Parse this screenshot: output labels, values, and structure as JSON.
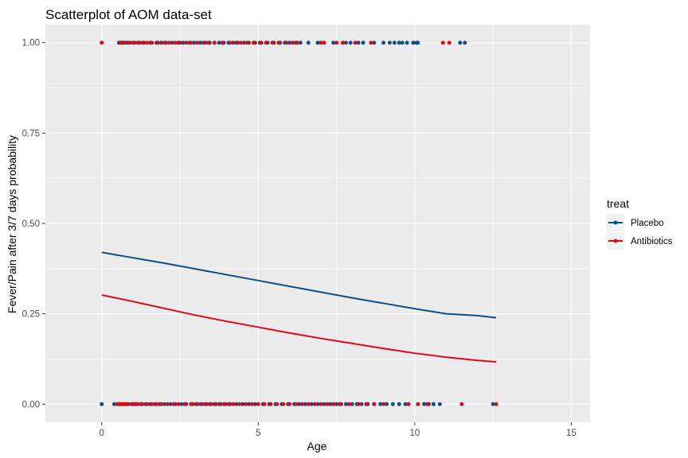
{
  "chart_data": {
    "type": "scatter",
    "title": "Scatterplot of AOM data-set",
    "xlabel": "Age",
    "ylabel": "Fever/Pain after 3/7 days probability",
    "xlim": [
      -1.8,
      15.6
    ],
    "ylim": [
      -0.05,
      1.05
    ],
    "x_ticks": [
      0,
      5,
      10,
      15
    ],
    "x_tick_labels": [
      "0",
      "5",
      "10",
      "15"
    ],
    "y_ticks": [
      0,
      0.25,
      0.5,
      0.75,
      1
    ],
    "y_tick_labels": [
      "0.00",
      "0.25",
      "0.50",
      "0.75",
      "1.00"
    ],
    "grid": true,
    "legend": {
      "title": "treat",
      "position": "right",
      "entries": [
        "Placebo",
        "Antibiotics"
      ]
    },
    "series": [
      {
        "name": "Placebo",
        "color": "#0B4F8C",
        "points_y1": [
          0.55,
          0.6,
          0.65,
          0.72,
          0.8,
          0.9,
          1.05,
          1.2,
          1.35,
          1.55,
          1.75,
          1.9,
          2.05,
          2.25,
          2.45,
          2.6,
          2.8,
          2.95,
          3.15,
          3.3,
          3.45,
          3.6,
          3.75,
          3.9,
          4.05,
          4.2,
          4.35,
          4.55,
          4.7,
          4.9,
          5.1,
          5.3,
          5.5,
          5.7,
          5.85,
          6.0,
          6.2,
          6.35,
          6.6,
          6.9,
          7.4,
          7.8,
          7.95,
          8.2,
          8.35,
          8.7,
          9.0,
          9.2,
          9.35,
          9.5,
          9.6,
          9.75,
          9.95,
          10.05,
          10.1,
          11.45,
          11.6
        ],
        "points_y0": [
          0.0,
          0.4,
          0.55,
          0.65,
          0.75,
          0.85,
          1.0,
          1.1,
          1.25,
          1.4,
          1.55,
          1.7,
          1.85,
          2.0,
          2.2,
          2.35,
          2.55,
          2.7,
          2.9,
          3.05,
          3.2,
          3.35,
          3.5,
          3.65,
          3.8,
          3.95,
          4.1,
          4.3,
          4.5,
          4.7,
          4.9,
          5.15,
          5.35,
          5.55,
          5.75,
          5.95,
          6.15,
          6.3,
          6.5,
          6.7,
          6.9,
          7.1,
          7.3,
          7.5,
          7.65,
          7.8,
          8.0,
          8.15,
          8.3,
          8.5,
          8.7,
          8.9,
          9.1,
          9.3,
          9.5,
          9.7,
          10.3,
          10.45,
          10.6,
          10.8,
          12.5
        ],
        "fit": [
          [
            0,
            0.42
          ],
          [
            1,
            0.405
          ],
          [
            2,
            0.39
          ],
          [
            3,
            0.374
          ],
          [
            4,
            0.358
          ],
          [
            5,
            0.342
          ],
          [
            6,
            0.326
          ],
          [
            7,
            0.31
          ],
          [
            8,
            0.294
          ],
          [
            9,
            0.279
          ],
          [
            10,
            0.264
          ],
          [
            11,
            0.25
          ],
          [
            12,
            0.245
          ],
          [
            12.6,
            0.239
          ]
        ]
      },
      {
        "name": "Antibiotics",
        "color": "#E30613",
        "points_y1": [
          0.0,
          0.6,
          0.7,
          0.85,
          1.0,
          1.15,
          1.3,
          1.45,
          1.6,
          1.8,
          2.0,
          2.15,
          2.35,
          2.5,
          2.7,
          2.85,
          3.05,
          3.25,
          3.4,
          3.6,
          3.85,
          4.1,
          4.3,
          4.45,
          4.65,
          4.85,
          5.05,
          5.25,
          5.45,
          5.65,
          5.9,
          6.1,
          6.25,
          7.0,
          7.1,
          7.5,
          7.7,
          8.1,
          8.6,
          10.9,
          11.1
        ],
        "points_y0": [
          0.5,
          0.6,
          0.7,
          0.8,
          0.95,
          1.05,
          1.15,
          1.3,
          1.45,
          1.6,
          1.75,
          1.9,
          2.1,
          2.3,
          2.45,
          2.65,
          2.85,
          3.0,
          3.15,
          3.3,
          3.45,
          3.6,
          3.75,
          3.9,
          4.05,
          4.2,
          4.4,
          4.6,
          4.8,
          5.0,
          5.2,
          5.4,
          5.6,
          5.8,
          6.0,
          6.2,
          6.4,
          6.6,
          6.8,
          7.0,
          7.2,
          7.4,
          7.6,
          7.9,
          8.2,
          8.45,
          8.7,
          9.0,
          9.8,
          10.1,
          10.4,
          11.5,
          12.6
        ],
        "fit": [
          [
            0,
            0.302
          ],
          [
            1,
            0.284
          ],
          [
            2,
            0.265
          ],
          [
            3,
            0.246
          ],
          [
            4,
            0.229
          ],
          [
            5,
            0.213
          ],
          [
            6,
            0.197
          ],
          [
            7,
            0.182
          ],
          [
            8,
            0.168
          ],
          [
            9,
            0.154
          ],
          [
            10,
            0.141
          ],
          [
            11,
            0.13
          ],
          [
            12,
            0.121
          ],
          [
            12.6,
            0.117
          ]
        ]
      }
    ]
  }
}
